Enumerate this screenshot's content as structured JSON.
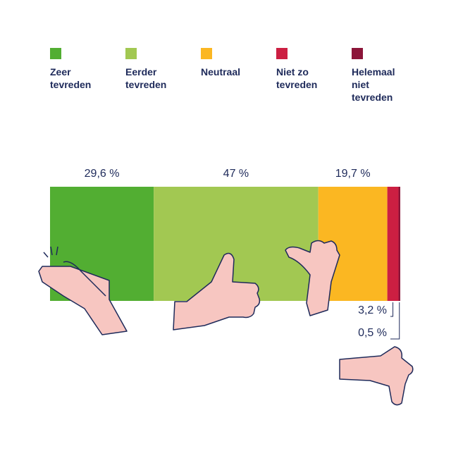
{
  "chart_data": {
    "type": "bar",
    "orientation": "horizontal",
    "stacked": true,
    "series": [
      {
        "name": "Zeer tevreden",
        "color": "#52ae32",
        "values": [
          29.6
        ],
        "value_labels": [
          "29,6 %"
        ]
      },
      {
        "name": "Eerder tevreden",
        "color": "#a2c852",
        "values": [
          47
        ],
        "value_labels": [
          "47 %"
        ]
      },
      {
        "name": "Neutraal",
        "color": "#fbb722",
        "values": [
          19.7
        ],
        "value_labels": [
          "19,7 %"
        ]
      },
      {
        "name": "Niet zo tevreden",
        "color": "#cc1f42",
        "values": [
          3.2
        ],
        "value_labels": [
          "3,2 %"
        ]
      },
      {
        "name": "Helemaal niet tevreden",
        "color": "#8c1539",
        "values": [
          0.5
        ],
        "value_labels": [
          "0,5 %"
        ]
      }
    ]
  }
}
